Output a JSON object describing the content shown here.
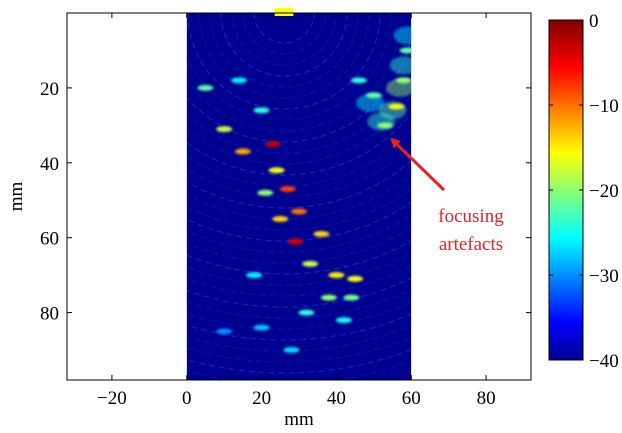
{
  "chart_data": {
    "type": "heatmap",
    "title": "",
    "xlabel": "mm",
    "ylabel": "mm",
    "xlim": [
      -32,
      92
    ],
    "ylim": [
      98,
      0
    ],
    "data_x_range": [
      0,
      60
    ],
    "x_ticks": [
      {
        "value": -20,
        "label": "−20"
      },
      {
        "value": 0,
        "label": "0"
      },
      {
        "value": 20,
        "label": "20"
      },
      {
        "value": 40,
        "label": "40"
      },
      {
        "value": 60,
        "label": "60"
      },
      {
        "value": 80,
        "label": "80"
      }
    ],
    "y_ticks": [
      {
        "value": 20,
        "label": "20"
      },
      {
        "value": 40,
        "label": "40"
      },
      {
        "value": 60,
        "label": "60"
      },
      {
        "value": 80,
        "label": "80"
      }
    ],
    "colorbar": {
      "range": [
        -40,
        0
      ],
      "ticks": [
        {
          "value": 0,
          "label": "0"
        },
        {
          "value": -10,
          "label": "−10"
        },
        {
          "value": -20,
          "label": "−20"
        },
        {
          "value": -30,
          "label": "−30"
        },
        {
          "value": -40,
          "label": "−40"
        }
      ],
      "colormap": "jet"
    },
    "reflectors": [
      {
        "x": 5,
        "y": 20,
        "db": -22
      },
      {
        "x": 10,
        "y": 31,
        "db": -18
      },
      {
        "x": 14,
        "y": 18,
        "db": -26
      },
      {
        "x": 15,
        "y": 37,
        "db": -12
      },
      {
        "x": 20,
        "y": 26,
        "db": -24
      },
      {
        "x": 23,
        "y": 35,
        "db": -3
      },
      {
        "x": 24,
        "y": 42,
        "db": -16
      },
      {
        "x": 27,
        "y": 47,
        "db": -8
      },
      {
        "x": 30,
        "y": 53,
        "db": -10
      },
      {
        "x": 21,
        "y": 48,
        "db": -20
      },
      {
        "x": 25,
        "y": 55,
        "db": -14
      },
      {
        "x": 29,
        "y": 61,
        "db": -4
      },
      {
        "x": 36,
        "y": 59,
        "db": -14
      },
      {
        "x": 33,
        "y": 67,
        "db": -18
      },
      {
        "x": 40,
        "y": 70,
        "db": -15
      },
      {
        "x": 45,
        "y": 71,
        "db": -16
      },
      {
        "x": 38,
        "y": 76,
        "db": -20
      },
      {
        "x": 44,
        "y": 76,
        "db": -21
      },
      {
        "x": 32,
        "y": 80,
        "db": -24
      },
      {
        "x": 42,
        "y": 82,
        "db": -25
      },
      {
        "x": 18,
        "y": 70,
        "db": -26
      },
      {
        "x": 20,
        "y": 84,
        "db": -28
      },
      {
        "x": 28,
        "y": 90,
        "db": -27
      },
      {
        "x": 10,
        "y": 85,
        "db": -30
      },
      {
        "x": 53,
        "y": 30,
        "db": -20
      },
      {
        "x": 56,
        "y": 25,
        "db": -16
      },
      {
        "x": 58,
        "y": 18,
        "db": -20
      },
      {
        "x": 50,
        "y": 22,
        "db": -22
      },
      {
        "x": 46,
        "y": 18,
        "db": -24
      },
      {
        "x": 59,
        "y": 10,
        "db": -22
      }
    ],
    "transducer": {
      "x": 26,
      "width_mm": 5
    },
    "annotation": {
      "lines": [
        "focusing",
        "artefacts"
      ],
      "target": {
        "x": 53,
        "y": 33
      }
    },
    "colors": {
      "background_low": "#00008f",
      "annotation": "#e8231f",
      "transducer": "#ffff00"
    }
  }
}
